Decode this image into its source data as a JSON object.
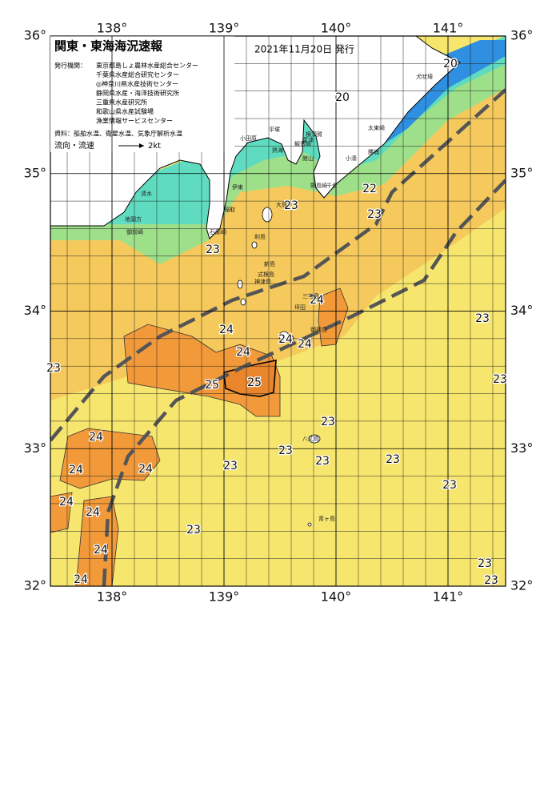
{
  "header": {
    "title": "関東・東海海況速報",
    "date": "2021年11月20日 発行",
    "issuer_label": "発行機関：",
    "issuers": [
      "東京都島しょ農林水産総合センター",
      "千葉県水産総合研究センター",
      "◎神奈川県水産技術センター",
      "静岡県水産・海洋技術研究所",
      "三重県水産研究所",
      "和歌山県水産試験場",
      "漁業情報サービスセンター"
    ],
    "sources": "資料：船舶水温、衛星水温、気象庁解析水温",
    "flow_label": "流向・流速",
    "flow_scale": "2kt"
  },
  "map": {
    "lon_ticks": [
      {
        "value": 138,
        "label": "138°"
      },
      {
        "value": 139,
        "label": "139°"
      },
      {
        "value": 140,
        "label": "140°"
      },
      {
        "value": 141,
        "label": "141°"
      }
    ],
    "lat_ticks": [
      {
        "value": 36,
        "label": "36°"
      },
      {
        "value": 35,
        "label": "35°"
      },
      {
        "value": 34,
        "label": "34°"
      },
      {
        "value": 33,
        "label": "33°"
      },
      {
        "value": 32,
        "label": "32°"
      }
    ],
    "temperatures": [
      20,
      20,
      23,
      22,
      23,
      23,
      24,
      24,
      24,
      24,
      24,
      25,
      25,
      23,
      23,
      23,
      23,
      23,
      23,
      23,
      23,
      23,
      24,
      24,
      24,
      24,
      24,
      24,
      24,
      23,
      23,
      23
    ],
    "places": [
      "犬吠埼",
      "太東崎",
      "勝浦",
      "小湊",
      "千倉",
      "野島崎",
      "館山",
      "富津",
      "観音崎",
      "横須賀",
      "平塚",
      "小田原",
      "熱海",
      "伊東",
      "稲取",
      "石廊崎",
      "清水",
      "地頭方",
      "御前崎",
      "大島",
      "利島",
      "新島",
      "式根島",
      "神津島",
      "三宅島",
      "坪田",
      "御蔵島",
      "八丈島",
      "青ヶ島"
    ]
  }
}
